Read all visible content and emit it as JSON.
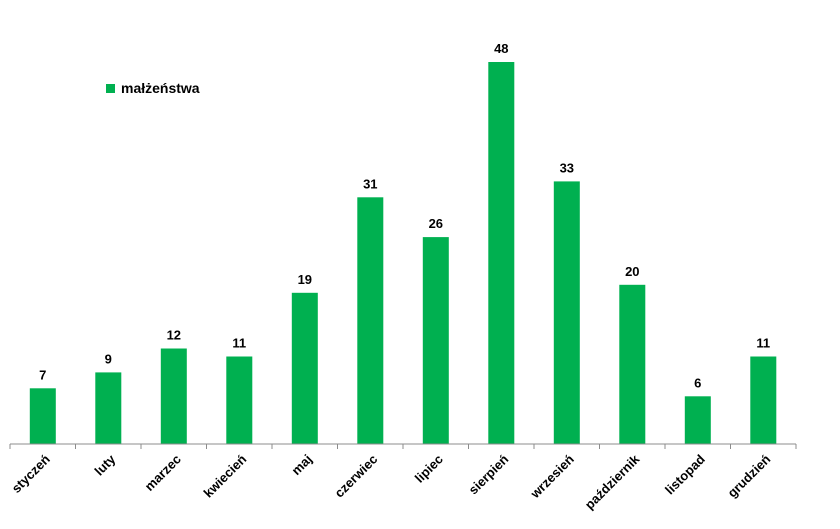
{
  "chart_data": {
    "type": "bar",
    "categories": [
      "styczeń",
      "luty",
      "marzec",
      "kwiecień",
      "maj",
      "czerwiec",
      "lipiec",
      "sierpień",
      "wrzesień",
      "październik",
      "listopad",
      "grudzień"
    ],
    "series": [
      {
        "name": "małżeństwa",
        "values": [
          7,
          9,
          12,
          11,
          19,
          31,
          26,
          48,
          33,
          20,
          6,
          11
        ]
      }
    ],
    "ylim": [
      0,
      48
    ],
    "grid": false,
    "legend": "top-left",
    "data_labels": true,
    "bar_color": "#00b050",
    "axis_color": "#8c8c8c"
  }
}
